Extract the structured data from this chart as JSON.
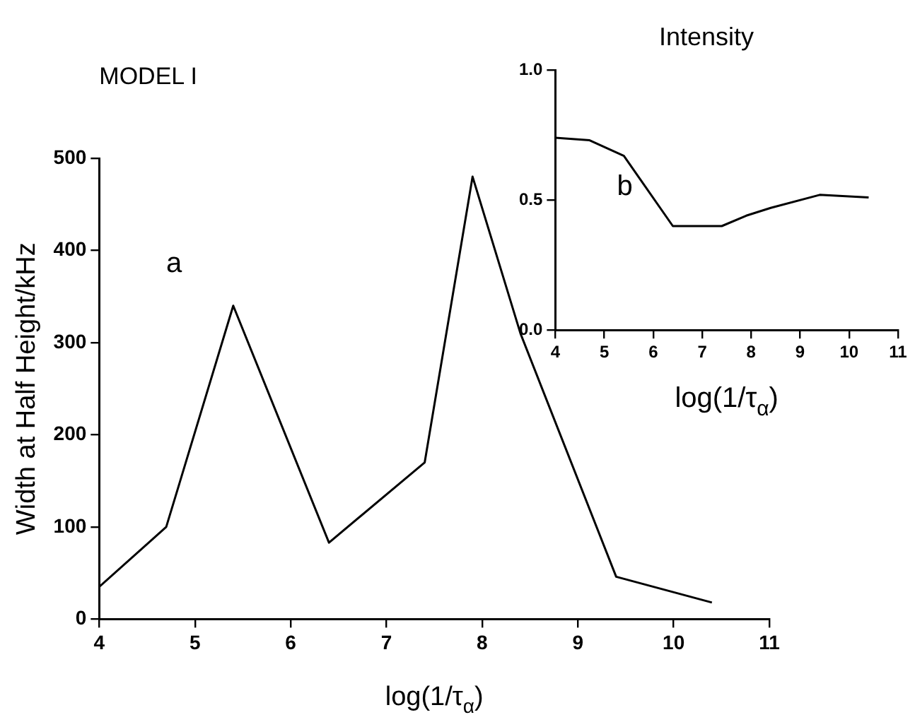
{
  "chart_data": [
    {
      "type": "line",
      "title": "MODEL I",
      "xlabel": "log(1/τ$_{α}$)",
      "ylabel": "Width at Half Height/kHz",
      "annotations": [
        "a"
      ],
      "x": [
        4,
        4.7,
        5.4,
        6.4,
        7.4,
        7.9,
        8.4,
        9.4,
        10.4
      ],
      "series": [
        {
          "color": "#000000",
          "values": [
            35,
            100,
            340,
            83,
            170,
            480,
            310,
            46,
            18
          ]
        }
      ],
      "xlim": [
        4,
        11
      ],
      "xticks": [
        4,
        5,
        6,
        7,
        8,
        9,
        10,
        11
      ],
      "ylim": [
        0,
        500
      ],
      "yticks": [
        0,
        100,
        200,
        300,
        400,
        500
      ],
      "grid": false,
      "legend": false,
      "marker": "none",
      "line_style": "solid"
    },
    {
      "type": "line",
      "title": "Intensity",
      "xlabel": "log(1/τ$_{α}$)",
      "annotations": [
        "b"
      ],
      "x": [
        4,
        4.7,
        5.4,
        6.4,
        7.4,
        7.9,
        8.4,
        9.4,
        10.4
      ],
      "series": [
        {
          "color": "#000000",
          "values": [
            0.74,
            0.73,
            0.67,
            0.4,
            0.4,
            0.44,
            0.47,
            0.52,
            0.51
          ]
        }
      ],
      "xlim": [
        4,
        11
      ],
      "xticks": [
        4,
        5,
        6,
        7,
        8,
        9,
        10,
        11
      ],
      "ylim": [
        0,
        1
      ],
      "yticks": [
        {
          "value": 0,
          "label": "0.0"
        },
        {
          "value": 0.5,
          "label": "0.5"
        },
        {
          "value": 1,
          "label": "1.0"
        }
      ],
      "grid": false,
      "legend": false,
      "marker": "none",
      "line_style": "solid"
    }
  ]
}
